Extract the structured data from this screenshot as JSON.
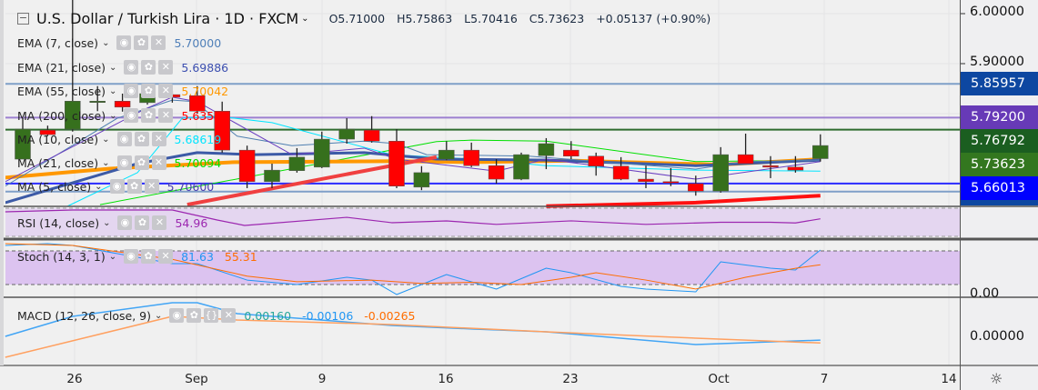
{
  "header": {
    "symbol": "U.S. Dollar / Turkish Lira",
    "interval": "1D",
    "exchange": "FXCM",
    "open": "O5.71000",
    "high": "H5.75863",
    "low": "L5.70416",
    "close": "C5.73623",
    "change": "+0.05137 (+0.90%)"
  },
  "legend": [
    {
      "label": "EMA (7, close)",
      "value": "5.70000",
      "color": "#4f7fb8"
    },
    {
      "label": "EMA (21, close)",
      "value": "5.69886",
      "color": "#3c4fb0"
    },
    {
      "label": "EMA (55, close)",
      "value": "5.70042",
      "color": "#ff9800"
    },
    {
      "label": "MA (200, close)",
      "value": "5.6357",
      "color": "#ff0000"
    },
    {
      "label": "MA (10, close)",
      "value": "5.68619",
      "color": "#00e5ff"
    },
    {
      "label": "MA (21, close)",
      "value": "5.70094",
      "color": "#00e000"
    },
    {
      "label": "MA (5, close)",
      "value": "5.70600",
      "color": "#4a3fb0"
    }
  ],
  "rsi_legend": {
    "label": "RSI (14, close)",
    "value": "54.96",
    "color": "#9c27b0"
  },
  "stoch_legend": {
    "label": "Stoch (14, 3, 1)",
    "k": "81.63",
    "d": "55.31",
    "k_color": "#2196f3",
    "d_color": "#ff6d00"
  },
  "macd_legend": {
    "label": "MACD (12, 26, close, 9)",
    "hist": "0.00160",
    "macd": "-0.00106",
    "signal": "-0.00265",
    "hist_color": "#26a69a",
    "macd_color": "#2196f3",
    "signal_color": "#ff6d00"
  },
  "price_axis": {
    "ticks": [
      "6.00000",
      "5.90000"
    ],
    "labels": [
      {
        "text": "5.85957",
        "bg": "#0d47a1"
      },
      {
        "text": "5.79200",
        "bg": "#673ab7"
      },
      {
        "text": "5.76792",
        "bg": "#1b5e20"
      },
      {
        "text": "5.73623",
        "bg": "#33771f"
      },
      {
        "text": "5.66013",
        "bg": "#0000ff"
      }
    ]
  },
  "stoch_axis": "0.00",
  "macd_axis": "0.00000",
  "time_axis": [
    "26",
    "Sep",
    "9",
    "16",
    "23",
    "Oct",
    "7",
    "14"
  ],
  "icons": {
    "settings": "gear-icon",
    "visibility": "eye-icon",
    "remove": "close-icon",
    "collapse": "minus-box-icon"
  },
  "chart_data": {
    "type": "candlestick",
    "ylim": [
      5.6,
      6.0
    ],
    "candles": [
      [
        5.709,
        5.791,
        5.709,
        5.769
      ],
      [
        5.767,
        5.776,
        5.755,
        5.758
      ],
      [
        5.769,
        6.03,
        5.764,
        5.825
      ],
      [
        5.825,
        5.855,
        5.805,
        5.825
      ],
      [
        5.825,
        5.84,
        5.804,
        5.813
      ],
      [
        5.822,
        5.851,
        5.818,
        5.84
      ],
      [
        5.838,
        5.845,
        5.822,
        5.833
      ],
      [
        5.836,
        5.855,
        5.8,
        5.805
      ],
      [
        5.805,
        5.824,
        5.722,
        5.727
      ],
      [
        5.727,
        5.736,
        5.651,
        5.664
      ],
      [
        5.664,
        5.7,
        5.651,
        5.687
      ],
      [
        5.686,
        5.731,
        5.682,
        5.713
      ],
      [
        5.693,
        5.764,
        5.691,
        5.749
      ],
      [
        5.749,
        5.791,
        5.74,
        5.769
      ],
      [
        5.767,
        5.795,
        5.742,
        5.745
      ],
      [
        5.745,
        5.769,
        5.651,
        5.655
      ],
      [
        5.653,
        5.695,
        5.647,
        5.682
      ],
      [
        5.709,
        5.745,
        5.707,
        5.727
      ],
      [
        5.727,
        5.742,
        5.693,
        5.696
      ],
      [
        5.696,
        5.709,
        5.66,
        5.669
      ],
      [
        5.669,
        5.722,
        5.667,
        5.718
      ],
      [
        5.716,
        5.751,
        5.689,
        5.74
      ],
      [
        5.727,
        5.745,
        5.709,
        5.715
      ],
      [
        5.715,
        5.722,
        5.676,
        5.695
      ],
      [
        5.695,
        5.713,
        5.667,
        5.669
      ],
      [
        5.669,
        5.696,
        5.651,
        5.664
      ],
      [
        5.664,
        5.691,
        5.655,
        5.662
      ],
      [
        5.66,
        5.676,
        5.636,
        5.645
      ],
      [
        5.645,
        5.733,
        5.642,
        5.718
      ],
      [
        5.718,
        5.76,
        5.7,
        5.7
      ],
      [
        5.696,
        5.715,
        5.671,
        5.693
      ],
      [
        5.693,
        5.715,
        5.682,
        5.687
      ],
      [
        5.71,
        5.75863,
        5.70416,
        5.73623
      ]
    ],
    "hlines": [
      {
        "price": 5.85957,
        "color": "#7f9fc8"
      },
      {
        "price": 5.792,
        "color": "#9c7fd0"
      },
      {
        "price": 5.76792,
        "color": "#2e6b2e"
      },
      {
        "price": 5.66013,
        "color": "#2a2aff"
      },
      {
        "price": 5.644,
        "color": "#7f9fc8"
      }
    ],
    "series": [
      {
        "name": "MA (21, close)",
        "color": "#00e000",
        "width": 1,
        "points": [
          [
            3.1,
            5.618
          ],
          [
            16.6,
            5.744
          ],
          [
            18,
            5.747
          ],
          [
            21,
            5.745
          ],
          [
            27,
            5.704
          ],
          [
            32,
            5.707
          ]
        ]
      },
      {
        "name": "MA (10, close)",
        "color": "#00e5ff",
        "width": 1,
        "points": [
          [
            1.8,
            5.615
          ],
          [
            4.6,
            5.682
          ],
          [
            6.4,
            5.791
          ],
          [
            7.8,
            5.795
          ],
          [
            10,
            5.782
          ],
          [
            14.8,
            5.718
          ],
          [
            18.1,
            5.709
          ],
          [
            21,
            5.696
          ],
          [
            27,
            5.687
          ],
          [
            32,
            5.685
          ]
        ]
      },
      {
        "name": "EMA (55, close)",
        "color": "#ff9800",
        "width": 4,
        "points": [
          [
            -0.7,
            5.672
          ],
          [
            3.5,
            5.69
          ],
          [
            8.5,
            5.703
          ],
          [
            15,
            5.705
          ],
          [
            18,
            5.703
          ],
          [
            22,
            5.706
          ],
          [
            28,
            5.698
          ],
          [
            32,
            5.709
          ]
        ]
      },
      {
        "name": "EMA (21, close)",
        "color": "#3c5aa6",
        "width": 3,
        "points": [
          [
            -0.7,
            5.622
          ],
          [
            4.6,
            5.7
          ],
          [
            7,
            5.722
          ],
          [
            9.3,
            5.718
          ],
          [
            13.7,
            5.722
          ],
          [
            16.6,
            5.709
          ],
          [
            21,
            5.707
          ],
          [
            27,
            5.696
          ],
          [
            32,
            5.707
          ]
        ]
      },
      {
        "name": "EMA (7, close)",
        "color": "#4f7fb0",
        "width": 1,
        "points": [
          [
            -0.7,
            5.655
          ],
          [
            3.8,
            5.791
          ],
          [
            6,
            5.827
          ],
          [
            6.9,
            5.824
          ],
          [
            8.6,
            5.755
          ],
          [
            10.8,
            5.736
          ],
          [
            13.7,
            5.745
          ],
          [
            15,
            5.74
          ],
          [
            16.2,
            5.718
          ],
          [
            20.3,
            5.715
          ],
          [
            27,
            5.689
          ],
          [
            29,
            5.704
          ],
          [
            32,
            5.707
          ]
        ]
      },
      {
        "name": "MA (5, close)",
        "color": "#6a3fc0",
        "width": 1,
        "points": [
          [
            -0.7,
            5.664
          ],
          [
            4.9,
            5.809
          ],
          [
            6,
            5.833
          ],
          [
            7,
            5.824
          ],
          [
            10.8,
            5.718
          ],
          [
            13.7,
            5.731
          ],
          [
            15,
            5.709
          ],
          [
            19,
            5.685
          ],
          [
            21,
            5.709
          ],
          [
            27,
            5.669
          ],
          [
            32,
            5.704
          ]
        ]
      },
      {
        "name": "MA (200, close)",
        "color": "#ff1010",
        "width": 4,
        "points": [
          [
            21,
            5.615
          ],
          [
            27,
            5.622
          ],
          [
            32,
            5.636
          ]
        ]
      },
      {
        "color": "#f04040",
        "width": 4,
        "points": [
          [
            6.6,
            5.618
          ],
          [
            16.6,
            5.713
          ]
        ]
      }
    ],
    "rsi": {
      "band": [
        30,
        70
      ],
      "points": [
        [
          -0.7,
          64.8
        ],
        [
          2,
          67.4
        ],
        [
          6,
          67.4
        ],
        [
          7.8,
          53.2
        ],
        [
          8.9,
          45.5
        ],
        [
          13,
          57
        ],
        [
          14.8,
          49.4
        ],
        [
          17,
          51.9
        ],
        [
          19,
          47
        ],
        [
          22,
          52
        ],
        [
          25,
          47
        ],
        [
          28,
          50
        ],
        [
          30,
          50
        ],
        [
          31,
          49
        ],
        [
          32,
          54.96
        ]
      ]
    },
    "stoch": {
      "band": [
        20,
        80
      ],
      "k": [
        [
          -0.7,
          89.7
        ],
        [
          1,
          93
        ],
        [
          2,
          89.7
        ],
        [
          6,
          57.3
        ],
        [
          7,
          57.3
        ],
        [
          9,
          28
        ],
        [
          11,
          20
        ],
        [
          13,
          33
        ],
        [
          14,
          28
        ],
        [
          15,
          2.2
        ],
        [
          17,
          37.8
        ],
        [
          18,
          24.9
        ],
        [
          19,
          11.9
        ],
        [
          21,
          49.2
        ],
        [
          22,
          41
        ],
        [
          24,
          16.8
        ],
        [
          25,
          11.9
        ],
        [
          27,
          7
        ],
        [
          28,
          60.5
        ],
        [
          30,
          49.2
        ],
        [
          31,
          46
        ],
        [
          32,
          81.63
        ]
      ],
      "d": [
        [
          -0.7,
          93
        ],
        [
          2,
          89.7
        ],
        [
          6,
          65
        ],
        [
          9,
          35
        ],
        [
          11,
          25
        ],
        [
          14,
          28
        ],
        [
          16,
          22
        ],
        [
          18,
          24
        ],
        [
          20,
          20
        ],
        [
          22,
          33
        ],
        [
          23,
          41
        ],
        [
          25,
          28
        ],
        [
          27,
          12
        ],
        [
          29,
          33
        ],
        [
          31,
          49
        ],
        [
          32,
          55.31
        ]
      ]
    },
    "macd": {
      "macd": [
        [
          -0.7,
          0.001
        ],
        [
          2,
          0.012
        ],
        [
          6,
          0.0195
        ],
        [
          7,
          0.0195
        ],
        [
          8.6,
          0.0135
        ],
        [
          14.8,
          0.007
        ],
        [
          18.1,
          0.005
        ],
        [
          21,
          0.0035
        ],
        [
          27,
          -0.0035
        ],
        [
          32,
          -0.00106
        ]
      ],
      "signal": [
        [
          -0.7,
          -0.0105
        ],
        [
          6,
          0.012
        ],
        [
          8.6,
          0.01
        ],
        [
          14.8,
          0.0075
        ],
        [
          21,
          0.0035
        ],
        [
          27,
          0
        ],
        [
          32,
          -0.00265
        ]
      ]
    }
  }
}
